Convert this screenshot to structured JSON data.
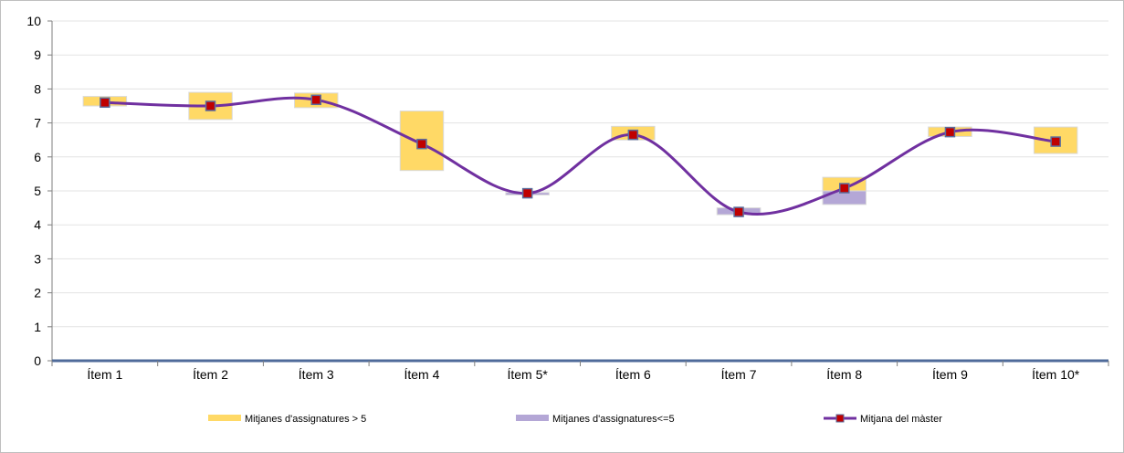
{
  "chart_data": {
    "type": "line",
    "categories": [
      "Ítem 1",
      "Ítem 2",
      "Ítem 3",
      "Ítem 4",
      "Ítem 5*",
      "Ítem 6",
      "Ítem 7",
      "Ítem 8",
      "Ítem 9",
      "Ítem 10*"
    ],
    "ylim": [
      0,
      10
    ],
    "yticks": [
      "0",
      "1",
      "2",
      "3",
      "4",
      "5",
      "6",
      "7",
      "8",
      "9",
      "10"
    ],
    "grid": true,
    "legend_position": "bottom",
    "series": [
      {
        "name": "Mitjanes d'assignatures > 5",
        "type": "range",
        "color": "#FFD966",
        "ranges": [
          [
            7.5,
            7.78
          ],
          [
            7.1,
            7.9
          ],
          [
            7.45,
            7.88
          ],
          [
            5.6,
            7.35
          ],
          null,
          [
            6.5,
            6.9
          ],
          [
            4.3,
            4.48
          ],
          [
            5.0,
            5.4
          ],
          [
            6.6,
            6.88
          ],
          [
            6.1,
            6.88
          ]
        ]
      },
      {
        "name": "Mitjanes d'assignatures<=5",
        "type": "range",
        "color": "#B4A7D6",
        "ranges": [
          null,
          null,
          null,
          null,
          [
            4.88,
            4.95
          ],
          null,
          [
            4.3,
            4.5
          ],
          [
            4.6,
            5.0
          ],
          null,
          null
        ]
      },
      {
        "name": "Mitjana del màster",
        "type": "line",
        "color": "#7030A0",
        "marker_color": "#C00000",
        "values": [
          7.6,
          7.5,
          7.68,
          6.38,
          4.93,
          6.65,
          4.38,
          5.08,
          6.73,
          6.45
        ]
      }
    ]
  }
}
